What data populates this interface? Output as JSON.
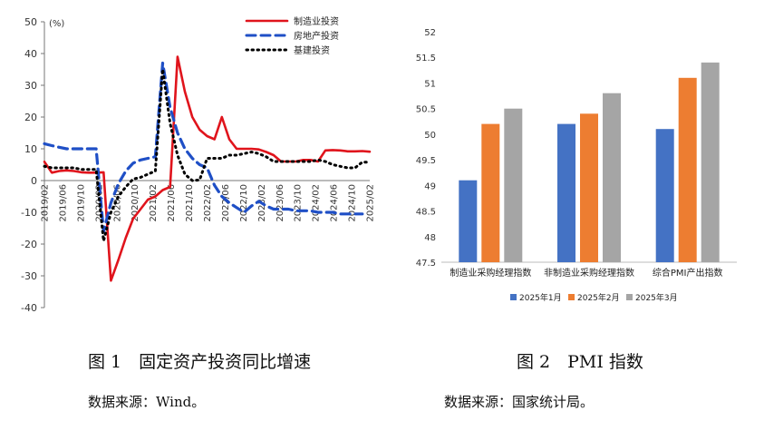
{
  "figure1": {
    "caption": "图 1　固定资产投资同比增速",
    "source": "数据来源：Wind。",
    "chart_data": {
      "type": "line",
      "unit_label": "(%)",
      "ylim": [
        -40,
        50
      ],
      "yticks": [
        -40,
        -30,
        -20,
        -10,
        0,
        10,
        20,
        30,
        40,
        50
      ],
      "x_tick_labels": [
        "2019/02",
        "2019/06",
        "2019/10",
        "2020/02",
        "2020/06",
        "2020/10",
        "2021/02",
        "2021/06",
        "2021/10",
        "2022/02",
        "2022/06",
        "2022/10",
        "2023/02",
        "2023/06",
        "2023/10",
        "2024/02",
        "2024/06",
        "2024/10",
        "2025/02"
      ],
      "x_start": "2019/02",
      "legend": [
        "制造业投资",
        "房地产投资",
        "基建投资"
      ],
      "legend_position": "top-right",
      "grid": false,
      "series": [
        {
          "name": "制造业投资",
          "color": "#e0141c",
          "style": "solid",
          "values": [
            5.9,
            2.5,
            3,
            3.2,
            3,
            2.6,
            2.5,
            2.5,
            2.6,
            -31.5,
            -25,
            -18,
            -12,
            -9,
            -6,
            -5,
            -3,
            -2,
            39,
            28,
            20,
            16,
            14,
            13,
            20,
            13,
            10,
            10,
            10,
            9.8,
            9,
            8,
            6,
            6,
            6,
            6.5,
            6.5,
            6,
            9.5,
            9.6,
            9.5,
            9.2,
            9.2,
            9.3,
            9.1
          ]
        },
        {
          "name": "房地产投资",
          "color": "#1f4fc6",
          "style": "dashed",
          "values": [
            11.6,
            11,
            10.5,
            10,
            10,
            10,
            10,
            10,
            -16,
            -7,
            -1,
            3,
            5.5,
            6.5,
            7,
            7.5,
            37,
            23,
            15,
            10,
            7,
            5,
            4,
            -1.5,
            -5,
            -7,
            -8.5,
            -10,
            -8,
            -6.5,
            -8,
            -9,
            -9,
            -9,
            -9.5,
            -9.5,
            -9.5,
            -10,
            -10,
            -10,
            -10.5,
            -10.5,
            -10.5,
            -10.5
          ]
        },
        {
          "name": "基建投资",
          "color": "#000000",
          "style": "dotted",
          "values": [
            4.5,
            4,
            4,
            4,
            4,
            3.5,
            3.5,
            3.5,
            -19,
            -10,
            -5,
            -2,
            0.5,
            1,
            2,
            3,
            35,
            18,
            8,
            2,
            0,
            0.2,
            7,
            7,
            7,
            8,
            8,
            8.5,
            9,
            8.5,
            7.5,
            6,
            6,
            6,
            6,
            6,
            6,
            6.5,
            6,
            5,
            4.5,
            4,
            4,
            5.8,
            5.8
          ]
        }
      ]
    }
  },
  "figure2": {
    "caption": "图 2　PMI 指数",
    "source": "数据来源：国家统计局。",
    "chart_data": {
      "type": "bar",
      "categories": [
        "制造业采购经理指数",
        "非制造业采购经理指数",
        "综合PMI产出指数"
      ],
      "ylim": [
        47.5,
        52
      ],
      "yticks": [
        47.5,
        48,
        48.5,
        49,
        49.5,
        50,
        50.5,
        51,
        51.5,
        52
      ],
      "legend_position": "bottom",
      "grid": false,
      "series": [
        {
          "name": "2025年1月",
          "color": "#4472c4",
          "values": [
            49.1,
            50.2,
            50.1
          ]
        },
        {
          "name": "2025年2月",
          "color": "#ed7d31",
          "values": [
            50.2,
            50.4,
            51.1
          ]
        },
        {
          "name": "2025年3月",
          "color": "#a5a5a5",
          "values": [
            50.5,
            50.8,
            51.4
          ]
        }
      ]
    }
  }
}
